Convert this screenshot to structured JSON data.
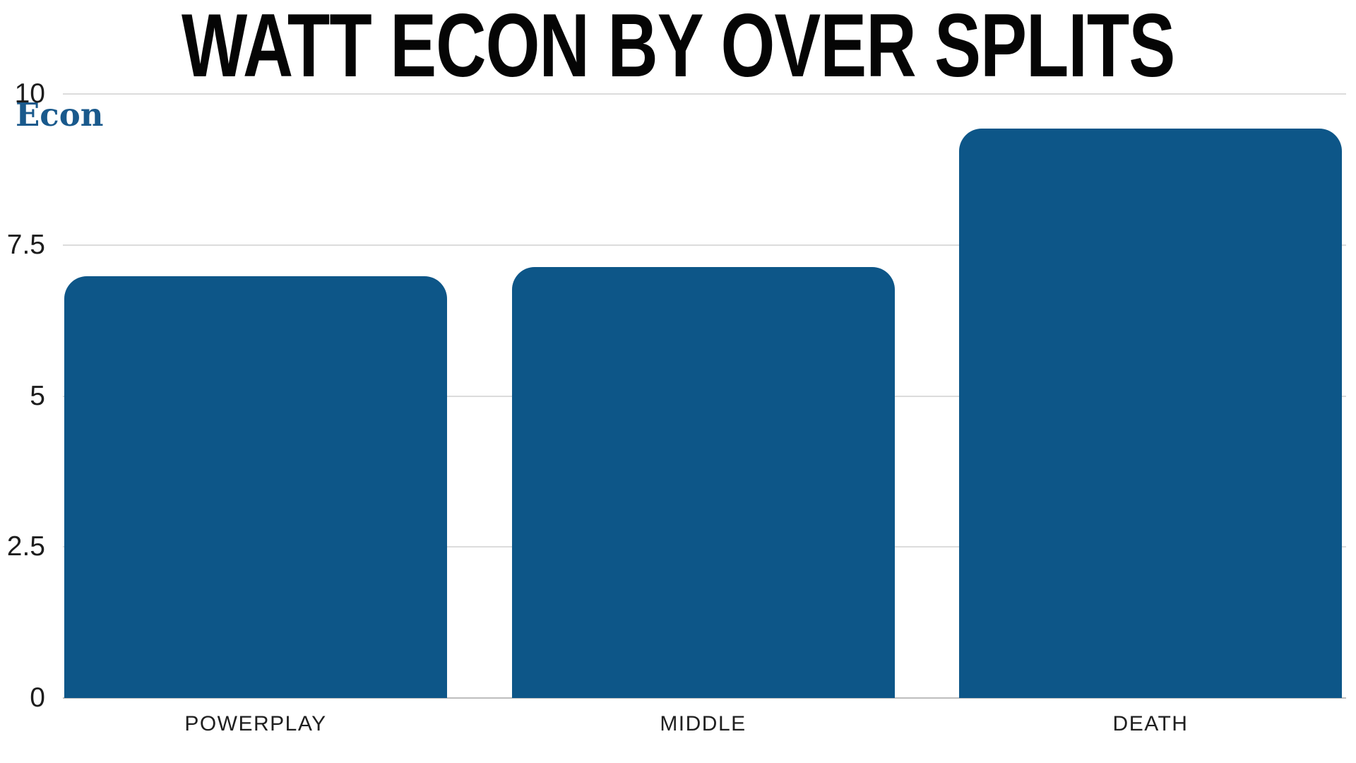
{
  "title": "WATT ECON BY OVER SPLITS",
  "legend": {
    "label": "Econ",
    "color": "#19598C"
  },
  "chart_data": {
    "type": "bar",
    "title": "WATT ECON BY OVER SPLITS",
    "categories": [
      "POWERPLAY",
      "MIDDLE",
      "DEATH"
    ],
    "series": [
      {
        "name": "Econ",
        "values": [
          6.98,
          7.13,
          9.43
        ]
      }
    ],
    "xlabel": "",
    "ylabel": "",
    "ylim": [
      0,
      10
    ],
    "yticks": [
      0,
      2.5,
      5,
      7.5,
      10
    ],
    "ytick_labels": [
      "0",
      "2.5",
      "5",
      "7.5",
      "10"
    ],
    "grid": true,
    "legend_position": "top-left",
    "bar_color": "#0D5688",
    "gridline_color": "#dcdcdc",
    "baseline_color": "#bdbdbd"
  }
}
